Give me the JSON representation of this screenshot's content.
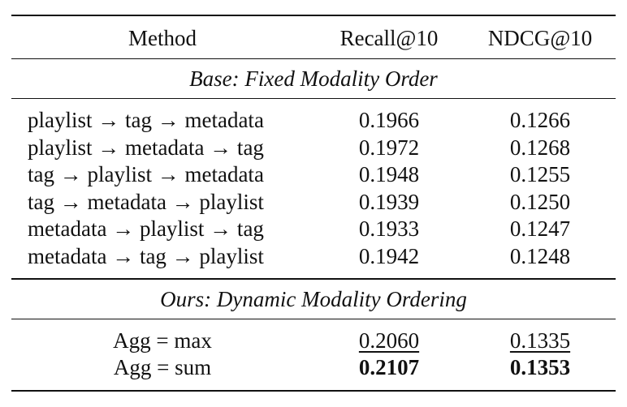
{
  "columns": {
    "method": "Method",
    "recall": "Recall@10",
    "ndcg": "NDCG@10"
  },
  "sections": {
    "base": {
      "title": "Base: Fixed Modality Order",
      "rows": [
        {
          "method": "playlist → tag → metadata",
          "recall": "0.1966",
          "ndcg": "0.1266"
        },
        {
          "method": "playlist → metadata → tag",
          "recall": "0.1972",
          "ndcg": "0.1268"
        },
        {
          "method": "tag → playlist → metadata",
          "recall": "0.1948",
          "ndcg": "0.1255"
        },
        {
          "method": "tag → metadata → playlist",
          "recall": "0.1939",
          "ndcg": "0.1250"
        },
        {
          "method": "metadata → playlist → tag",
          "recall": "0.1933",
          "ndcg": "0.1247"
        },
        {
          "method": "metadata → tag → playlist",
          "recall": "0.1942",
          "ndcg": "0.1248"
        }
      ]
    },
    "ours": {
      "title": "Ours: Dynamic Modality Ordering",
      "rows": [
        {
          "method": "Agg = max",
          "recall": "0.2060",
          "ndcg": "0.1335"
        },
        {
          "method": "Agg = sum",
          "recall": "0.2107",
          "ndcg": "0.1353"
        }
      ]
    }
  }
}
